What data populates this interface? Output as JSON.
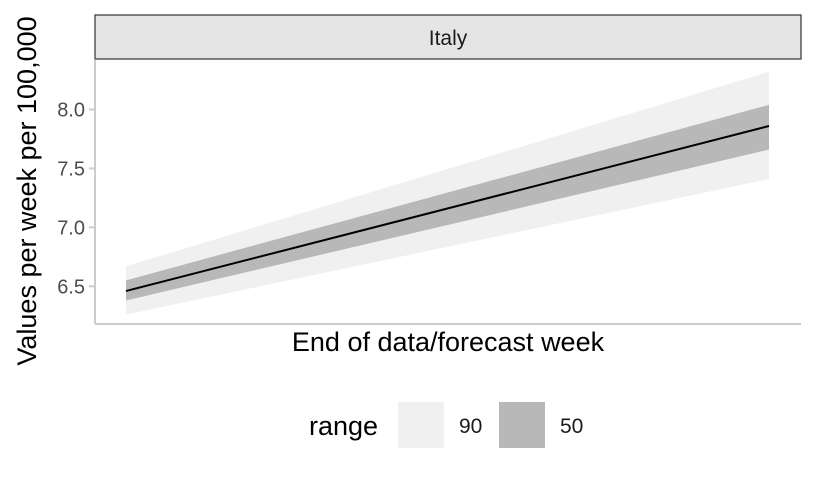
{
  "chart_data": {
    "type": "area",
    "facet": "Italy",
    "xlabel": "End of data/forecast week",
    "ylabel": "Values per week per 100,000",
    "ylim": [
      6.18,
      8.42
    ],
    "yticks": [
      6.5,
      7.0,
      7.5,
      8.0
    ],
    "ytick_labels": [
      "6.5",
      "7.0",
      "7.5",
      "8.0"
    ],
    "x_ticks_shown": false,
    "grid": false,
    "line": {
      "start": 6.46,
      "end": 7.86
    },
    "ranges": [
      {
        "name": "90",
        "lower": [
          6.26,
          7.41
        ],
        "upper": [
          6.67,
          8.32
        ],
        "color": "#f0f0f0"
      },
      {
        "name": "50",
        "lower": [
          6.38,
          7.66
        ],
        "upper": [
          6.55,
          8.04
        ],
        "color": "#b8b8b8"
      }
    ],
    "legend": {
      "title": "range",
      "position": "bottom",
      "items": [
        {
          "label": "90",
          "color": "#f0f0f0"
        },
        {
          "label": "50",
          "color": "#b8b8b8"
        }
      ]
    }
  }
}
